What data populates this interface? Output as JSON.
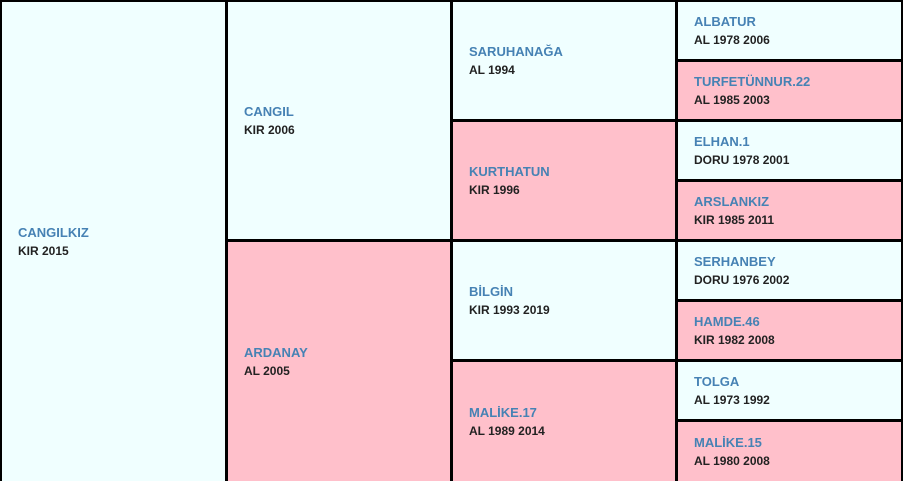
{
  "subject": {
    "name": "CANGILKIZ",
    "info": "KIR 2015"
  },
  "gen1": [
    {
      "name": "CANGIL",
      "info": "KIR 2006"
    },
    {
      "name": "ARDANAY",
      "info": "AL 2005"
    }
  ],
  "gen2": [
    {
      "name": "SARUHANAĞA",
      "info": "AL 1994"
    },
    {
      "name": "KURTHATUN",
      "info": "KIR 1996"
    },
    {
      "name": "BİLGİN",
      "info": "KIR 1993 2019"
    },
    {
      "name": "MALİKE.17",
      "info": "AL 1989 2014"
    }
  ],
  "gen3": [
    {
      "name": "ALBATUR",
      "info": "AL 1978 2006"
    },
    {
      "name": "TURFETÜNNUR.22",
      "info": "AL 1985 2003"
    },
    {
      "name": "ELHAN.1",
      "info": "DORU 1978 2001"
    },
    {
      "name": "ARSLANKIZ",
      "info": "KIR 1985 2011"
    },
    {
      "name": "SERHANBEY",
      "info": "DORU 1976 2002"
    },
    {
      "name": "HAMDE.46",
      "info": "KIR 1982 2008"
    },
    {
      "name": "TOLGA",
      "info": "AL 1973 1992"
    },
    {
      "name": "MALİKE.15",
      "info": "AL 1980 2008"
    }
  ],
  "colors": {
    "male": "#f0ffff",
    "female": "#ffc0cb",
    "name": "#4682b4",
    "border": "#000000"
  }
}
